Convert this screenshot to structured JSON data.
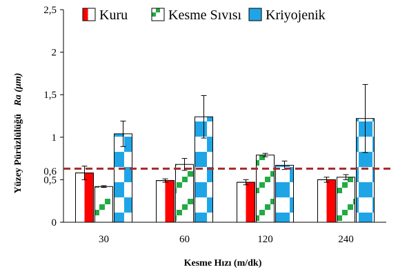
{
  "chart_data": {
    "type": "bar",
    "categories": [
      "30",
      "60",
      "120",
      "240"
    ],
    "series": [
      {
        "name": "Kuru",
        "values": [
          0.58,
          0.49,
          0.47,
          0.5
        ],
        "errors": [
          0.08,
          0.02,
          0.03,
          0.03
        ],
        "color": "#ff0000",
        "pattern": "half"
      },
      {
        "name": "Kesme Sıvısı",
        "values": [
          0.42,
          0.68,
          0.79,
          0.53
        ],
        "errors": [
          0.01,
          0.07,
          0.02,
          0.03
        ],
        "color": "#22aa44",
        "pattern": "diagonal"
      },
      {
        "name": "Kriyojenik",
        "values": [
          1.04,
          1.24,
          0.67,
          1.22
        ],
        "errors": [
          0.15,
          0.25,
          0.05,
          0.4
        ],
        "color": "#1fa5e6",
        "pattern": "checker"
      }
    ],
    "xlabel": "Kesme Hızı (m/dk)",
    "ylabel_prefix": "Yüzey Pürüzlülüğü",
    "ylabel_italic": "Ra (μm)",
    "ylim": [
      0,
      2.5
    ],
    "yticks": [
      "0",
      "0,5",
      "0,6",
      "1",
      "1,5",
      "2",
      "2,5"
    ],
    "ytick_values": [
      0,
      0.5,
      0.6,
      1,
      1.5,
      2,
      2.5
    ],
    "reference_line": {
      "value": 0.63,
      "color": "#a52a2a",
      "style": "dashed"
    },
    "legend_position": "top"
  }
}
